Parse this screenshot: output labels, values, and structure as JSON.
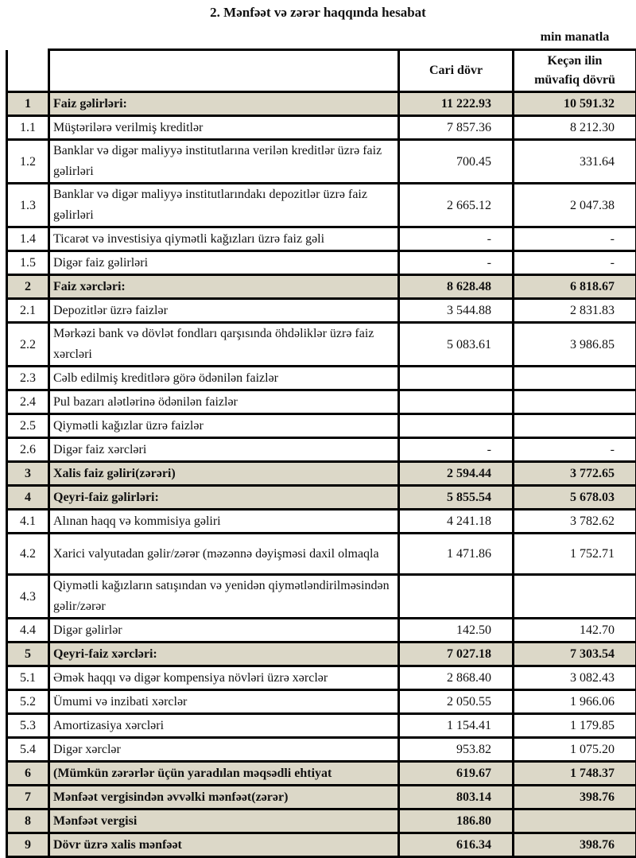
{
  "title": "2. Mənfəət və zərər haqqında hesabat",
  "unit": "min manatla",
  "columns": {
    "current": "Cari dövr",
    "previous_line1": "Keçən ilin",
    "previous_line2": "müvafiq dövrü"
  },
  "rows": [
    {
      "no": "1",
      "label": "Faiz gəlirləri:",
      "current": "11 222.93",
      "previous": "10 591.32",
      "bold": true
    },
    {
      "no": "1.1",
      "label": "Müştərilərə verilmiş kreditlər",
      "current": "7 857.36",
      "previous": "8 212.30"
    },
    {
      "no": "1.2",
      "label": "Banklar və digər maliyyə institutlarına verilən kreditlər üzrə faiz gəlirləri",
      "current": "700.45",
      "previous": "331.64",
      "tall": true
    },
    {
      "no": "1.3",
      "label": "Banklar və digər maliyyə institutlarındakı depozitlər üzrə faiz gəlirləri",
      "current": "2 665.12",
      "previous": "2 047.38",
      "tall": true
    },
    {
      "no": "1.4",
      "label": "Ticarət və investisiya qiymətli kağızları üzrə faiz gəli",
      "current": "-",
      "previous": "-"
    },
    {
      "no": "1.5",
      "label": "Digər faiz gəlirləri",
      "current": "-",
      "previous": "-"
    },
    {
      "no": "2",
      "label": "Faiz xərcləri:",
      "current": "8 628.48",
      "previous": "6 818.67",
      "bold": true
    },
    {
      "no": "2.1",
      "label": "Depozitlər üzrə faizlər",
      "current": "3 544.88",
      "previous": "2 831.83"
    },
    {
      "no": "2.2",
      "label": "Mərkəzi bank və dövlət fondları qarşısında öhdəliklər üzrə faiz xərcləri",
      "current": "5 083.61",
      "previous": "3 986.85",
      "tall": true
    },
    {
      "no": "2.3",
      "label": "Cəlb edilmiş kreditlərə görə ödənilən faizlər",
      "current": "",
      "previous": ""
    },
    {
      "no": "2.4",
      "label": "Pul bazarı alətlərinə ödənilən faizlər",
      "current": "",
      "previous": ""
    },
    {
      "no": "2.5",
      "label": "Qiymətli kağızlar üzrə faizlər",
      "current": "",
      "previous": ""
    },
    {
      "no": "2.6",
      "label": "Digər faiz xərcləri",
      "current": "-",
      "previous": "-"
    },
    {
      "no": "3",
      "label": "Xalis faiz gəliri(zərəri)",
      "current": "2 594.44",
      "previous": "3 772.65",
      "bold": true
    },
    {
      "no": "4",
      "label": "Qeyri-faiz gəlirləri:",
      "current": "5 855.54",
      "previous": "5 678.03",
      "bold": true
    },
    {
      "no": "4.1",
      "label": "Alınan haqq və kommisiya gəliri",
      "current": "4 241.18",
      "previous": "3 782.62"
    },
    {
      "no": "4.2",
      "label": "Xarici valyutadan gəlir/zərər (məzənnə dəyişməsi daxil olmaqla",
      "current": "1 471.86",
      "previous": "1 752.71",
      "tall": true
    },
    {
      "no": "4.3",
      "label": "Qiymətli kağızların satışından və yenidən qiymətləndirilməsindən gəlir/zərər",
      "current": "",
      "previous": "",
      "tall": true
    },
    {
      "no": "4.4",
      "label": "Digər gəlirlər",
      "current": "142.50",
      "previous": "142.70"
    },
    {
      "no": "5",
      "label": "Qeyri-faiz xərcləri:",
      "current": "7 027.18",
      "previous": "7 303.54",
      "bold": true
    },
    {
      "no": "5.1",
      "label": "Əmək haqqı və digər kompensiya növləri üzrə xərclər",
      "current": "2 868.40",
      "previous": "3 082.43"
    },
    {
      "no": "5.2",
      "label": "Ümumi və inzibati xərclər",
      "current": "2 050.55",
      "previous": "1 966.06"
    },
    {
      "no": "5.3",
      "label": "Amortizasiya xərcləri",
      "current": "1 154.41",
      "previous": "1 179.85"
    },
    {
      "no": "5.4",
      "label": "Digər xərclər",
      "current": "953.82",
      "previous": "1 075.20"
    },
    {
      "no": "6",
      "label": "(Mümkün zərərlər üçün yaradılan məqsədli ehtiyat",
      "current": "619.67",
      "previous": "1 748.37",
      "bold": true
    },
    {
      "no": "7",
      "label": "Mənfəət vergisindən əvvəlki mənfəət(zərər)",
      "current": "803.14",
      "previous": "398.76",
      "bold": true
    },
    {
      "no": "8",
      "label": "Mənfəət vergisi",
      "current": "186.80",
      "previous": "",
      "bold": true
    },
    {
      "no": "9",
      "label": "Dövr üzrə xalis mənfəət",
      "current": "616.34",
      "previous": "398.76",
      "bold": true
    }
  ],
  "colors": {
    "highlight_row": "#dcd8c8",
    "border": "#000000"
  }
}
